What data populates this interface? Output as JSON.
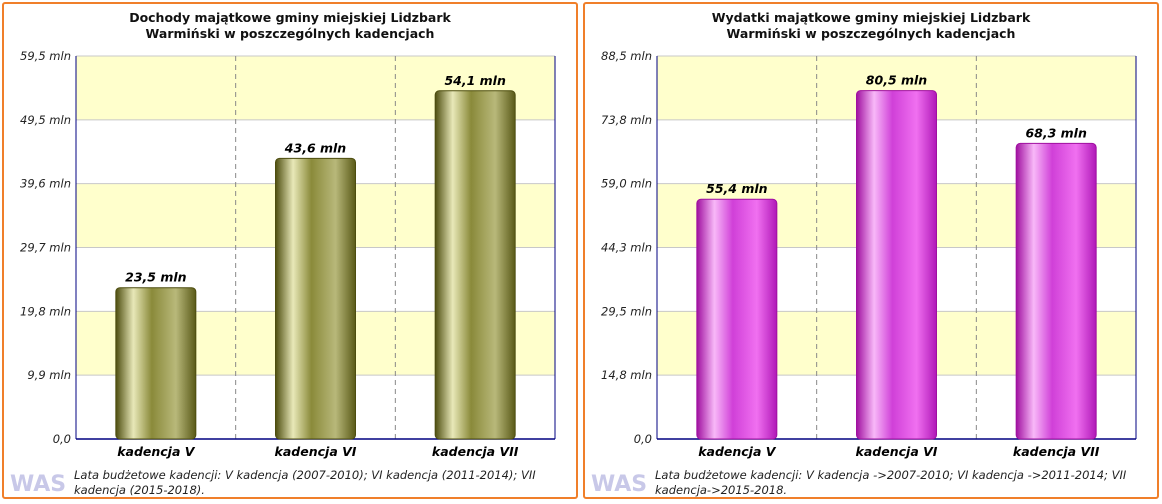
{
  "colors": {
    "border": "#f07f2a",
    "band": "#ffffcc",
    "axis": "#000080",
    "bar_left": "#6f6f1f",
    "bar_right": "#cc22cc"
  },
  "logo_text": "WAS",
  "left": {
    "title": "Dochody majątkowe gminy miejskiej Lidzbark Warmiński w poszczególnych kadencjach",
    "footnote": "Lata budżetowe kadencji: V kadencja (2007-2010); VI kadencja (2011-2014); VII kadencja (2015-2018).",
    "chart_data": {
      "type": "bar",
      "title": "Dochody majątkowe gminy miejskiej Lidzbark Warmiński w poszczególnych kadencjach",
      "categories": [
        "kadencja V",
        "kadencja VI",
        "kadencja VII"
      ],
      "values": [
        23.5,
        43.6,
        54.1
      ],
      "value_labels": [
        "23,5 mln",
        "43,6 mln",
        "54,1 mln"
      ],
      "yticks": [
        "0,0",
        "9,9 mln",
        "19,8 mln",
        "29,7 mln",
        "39,6 mln",
        "49,5 mln",
        "59,5 mln"
      ],
      "ylim": [
        0,
        59.5
      ],
      "grid": true,
      "xlabel": "",
      "ylabel": ""
    }
  },
  "right": {
    "title": "Wydatki majątkowe gminy miejskiej Lidzbark Warmiński w poszczególnych kadencjach",
    "footnote": "Lata budżetowe kadencji: V kadencja ->2007-2010; VI kadencja ->2011-2014; VII kadencja->2015-2018.",
    "chart_data": {
      "type": "bar",
      "title": "Wydatki majątkowe gminy miejskiej Lidzbark Warmiński w poszczególnych kadencjach",
      "categories": [
        "kadencja V",
        "kadencja VI",
        "kadencja VII"
      ],
      "values": [
        55.4,
        80.5,
        68.3
      ],
      "value_labels": [
        "55,4 mln",
        "80,5 mln",
        "68,3 mln"
      ],
      "yticks": [
        "0,0",
        "14,8 mln",
        "29,5 mln",
        "44,3 mln",
        "59,0 mln",
        "73,8 mln",
        "88,5 mln"
      ],
      "ylim": [
        0,
        88.5
      ],
      "grid": true,
      "xlabel": "",
      "ylabel": ""
    }
  }
}
